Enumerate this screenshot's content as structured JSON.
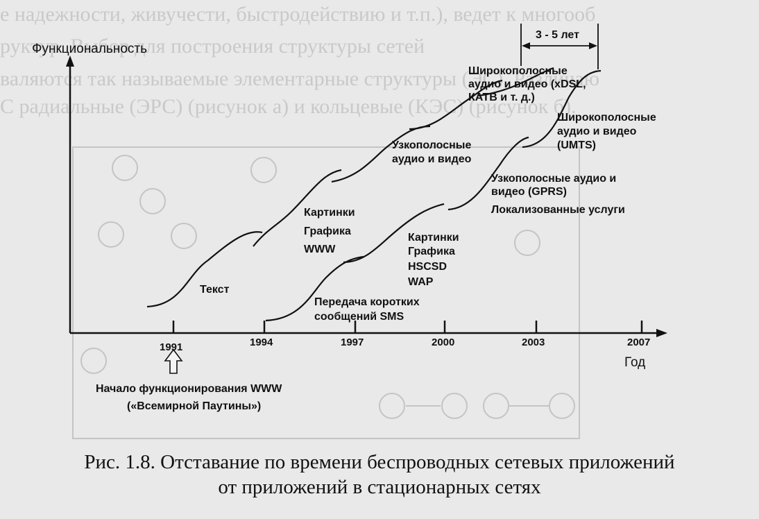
{
  "background_text": [
    "е надежности, живучести, быстродействию и т.п.), ведет к многооб",
    "руктур. Выбор для построения структуры сетей",
    "валяются так называемые элементарные структуры (ЭС). Различаю",
    "С радиальные (ЭРС) (рисунок а) и кольцевые (КЭС) (рисунок б)."
  ],
  "figure": {
    "y_axis_title": "Функциональность",
    "x_axis_title": "Год",
    "span_label": "3 - 5 лет",
    "ticks": [
      "1991",
      "1994",
      "1997",
      "2000",
      "2003",
      "2007"
    ],
    "www_note": [
      "Начало функционирования WWW",
      "(«Всемирной Паутины»)"
    ],
    "fixed_labels": {
      "text": "Текст",
      "pictures": [
        "Картинки",
        "Графика",
        "WWW"
      ],
      "narrowband": [
        "Узкополосные",
        "аудио и видео"
      ],
      "broadband": [
        "Широкополосные",
        "аудио и видео (xDSL,",
        "КАТВ и т. д.)"
      ]
    },
    "wireless_labels": {
      "sms": [
        "Передача коротких",
        "сообщений SMS"
      ],
      "pictures": [
        "Картинки",
        "Графика",
        "HSCSD",
        "WAP"
      ],
      "narrowband": [
        "Узкополосные аудио и",
        "видео (GPRS)"
      ],
      "localized": "Локализованные услуги",
      "broadband": [
        "Широкополосные",
        "аудио и видео",
        "(UMTS)"
      ]
    }
  },
  "caption": [
    "Рис. 1.8. Отставание по времени беспроводных сетевых приложений",
    "от приложений в стационарных сетях"
  ]
}
